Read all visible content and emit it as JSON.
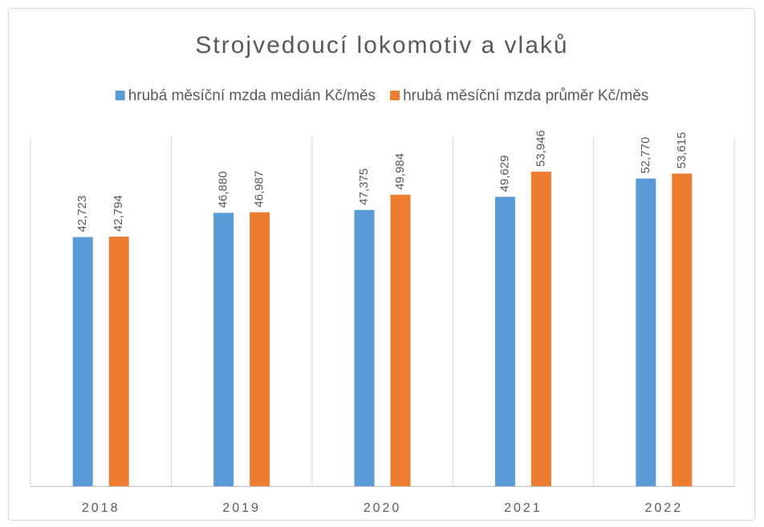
{
  "chart_data": {
    "type": "bar",
    "title": "Strojvedoucí lokomotiv a vlaků",
    "categories": [
      "2018",
      "2019",
      "2020",
      "2021",
      "2022"
    ],
    "series": [
      {
        "name": "hrubá měsíční mzda medián Kč/měs",
        "color": "#5b9bd5",
        "values": [
          42723,
          46880,
          47375,
          49629,
          52770
        ],
        "value_labels": [
          "42,723",
          "46,880",
          "47,375",
          "49,629",
          "52,770"
        ]
      },
      {
        "name": "hrubá měsíční mzda průměr Kč/měs",
        "color": "#ed7d31",
        "values": [
          42794,
          46987,
          49984,
          53946,
          53615
        ],
        "value_labels": [
          "42,794",
          "46,987",
          "49,984",
          "53,946",
          "53,615"
        ]
      }
    ],
    "ylim": [
      0,
      60000
    ],
    "legend": "top"
  }
}
